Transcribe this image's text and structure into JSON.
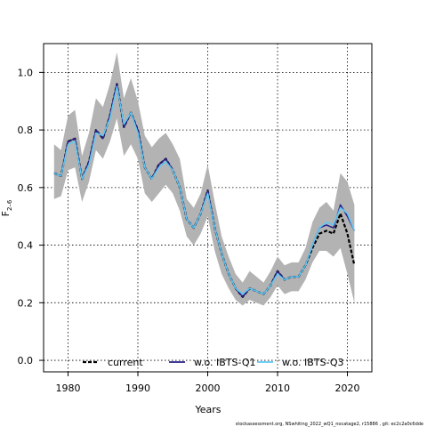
{
  "chart_data": {
    "type": "line",
    "xlabel": "Years",
    "ylabel_main": "F",
    "ylabel_sub": "2–6",
    "xlim": [
      1976.5,
      2023.5
    ],
    "ylim": [
      -0.04,
      1.1
    ],
    "xticks": [
      1980,
      1990,
      2000,
      2010,
      2020
    ],
    "yticks": [
      0.0,
      0.2,
      0.4,
      0.6,
      0.8,
      1.0
    ],
    "grid": true,
    "legend_position": "bottom",
    "x": [
      1978,
      1979,
      1980,
      1981,
      1982,
      1983,
      1984,
      1985,
      1986,
      1987,
      1988,
      1989,
      1990,
      1991,
      1992,
      1993,
      1994,
      1995,
      1996,
      1997,
      1998,
      1999,
      2000,
      2001,
      2002,
      2003,
      2004,
      2005,
      2006,
      2007,
      2008,
      2009,
      2010,
      2011,
      2012,
      2013,
      2014,
      2015,
      2016,
      2017,
      2018,
      2019,
      2020,
      2021
    ],
    "band": {
      "lower": [
        0.56,
        0.57,
        0.66,
        0.67,
        0.55,
        0.62,
        0.73,
        0.7,
        0.76,
        0.84,
        0.71,
        0.75,
        0.7,
        0.58,
        0.55,
        0.58,
        0.61,
        0.58,
        0.52,
        0.43,
        0.4,
        0.44,
        0.5,
        0.38,
        0.3,
        0.25,
        0.21,
        0.19,
        0.21,
        0.2,
        0.19,
        0.22,
        0.26,
        0.23,
        0.24,
        0.24,
        0.28,
        0.34,
        0.38,
        0.38,
        0.36,
        0.39,
        0.3,
        0.2
      ],
      "upper": [
        0.75,
        0.73,
        0.85,
        0.87,
        0.71,
        0.79,
        0.91,
        0.88,
        0.96,
        1.07,
        0.91,
        0.98,
        0.9,
        0.78,
        0.74,
        0.77,
        0.79,
        0.75,
        0.7,
        0.56,
        0.53,
        0.58,
        0.68,
        0.55,
        0.43,
        0.36,
        0.3,
        0.27,
        0.31,
        0.29,
        0.27,
        0.31,
        0.36,
        0.33,
        0.34,
        0.34,
        0.39,
        0.48,
        0.53,
        0.55,
        0.52,
        0.65,
        0.62,
        0.54
      ]
    },
    "series": [
      {
        "name": "current",
        "color": "#000000",
        "dashed": true,
        "values": [
          0.65,
          0.64,
          0.76,
          0.77,
          0.63,
          0.69,
          0.8,
          0.77,
          0.85,
          0.96,
          0.81,
          0.86,
          0.8,
          0.67,
          0.63,
          0.68,
          0.7,
          0.66,
          0.6,
          0.49,
          0.46,
          0.51,
          0.59,
          0.46,
          0.37,
          0.3,
          0.25,
          0.22,
          0.25,
          0.24,
          0.23,
          0.26,
          0.31,
          0.28,
          0.29,
          0.29,
          0.33,
          0.39,
          0.44,
          0.45,
          0.44,
          0.51,
          0.44,
          0.33
        ]
      },
      {
        "name": "w.o. IBTS-Q1",
        "color": "#2a1f8a",
        "dashed": false,
        "values": [
          0.65,
          0.64,
          0.76,
          0.77,
          0.63,
          0.69,
          0.8,
          0.77,
          0.85,
          0.96,
          0.81,
          0.86,
          0.8,
          0.67,
          0.63,
          0.68,
          0.7,
          0.66,
          0.6,
          0.49,
          0.46,
          0.51,
          0.59,
          0.46,
          0.37,
          0.3,
          0.25,
          0.22,
          0.25,
          0.24,
          0.23,
          0.26,
          0.31,
          0.28,
          0.29,
          0.29,
          0.33,
          0.4,
          0.46,
          0.47,
          0.46,
          0.54,
          0.5,
          0.45
        ]
      },
      {
        "name": "w.o. IBTS-Q3",
        "color": "#5bc8f5",
        "dashed": false,
        "values": [
          0.65,
          0.64,
          0.75,
          0.76,
          0.63,
          0.68,
          0.79,
          0.78,
          0.84,
          0.95,
          0.82,
          0.86,
          0.79,
          0.67,
          0.63,
          0.67,
          0.69,
          0.66,
          0.6,
          0.49,
          0.46,
          0.51,
          0.58,
          0.46,
          0.37,
          0.3,
          0.25,
          0.23,
          0.25,
          0.24,
          0.23,
          0.26,
          0.3,
          0.28,
          0.29,
          0.29,
          0.33,
          0.4,
          0.46,
          0.48,
          0.47,
          0.53,
          0.51,
          0.45
        ]
      }
    ]
  },
  "footnote": "stockassessment.org, NSwhiting_2022_wQ1_nocatage2, r15886 , git: ec2c2a0c6dde"
}
